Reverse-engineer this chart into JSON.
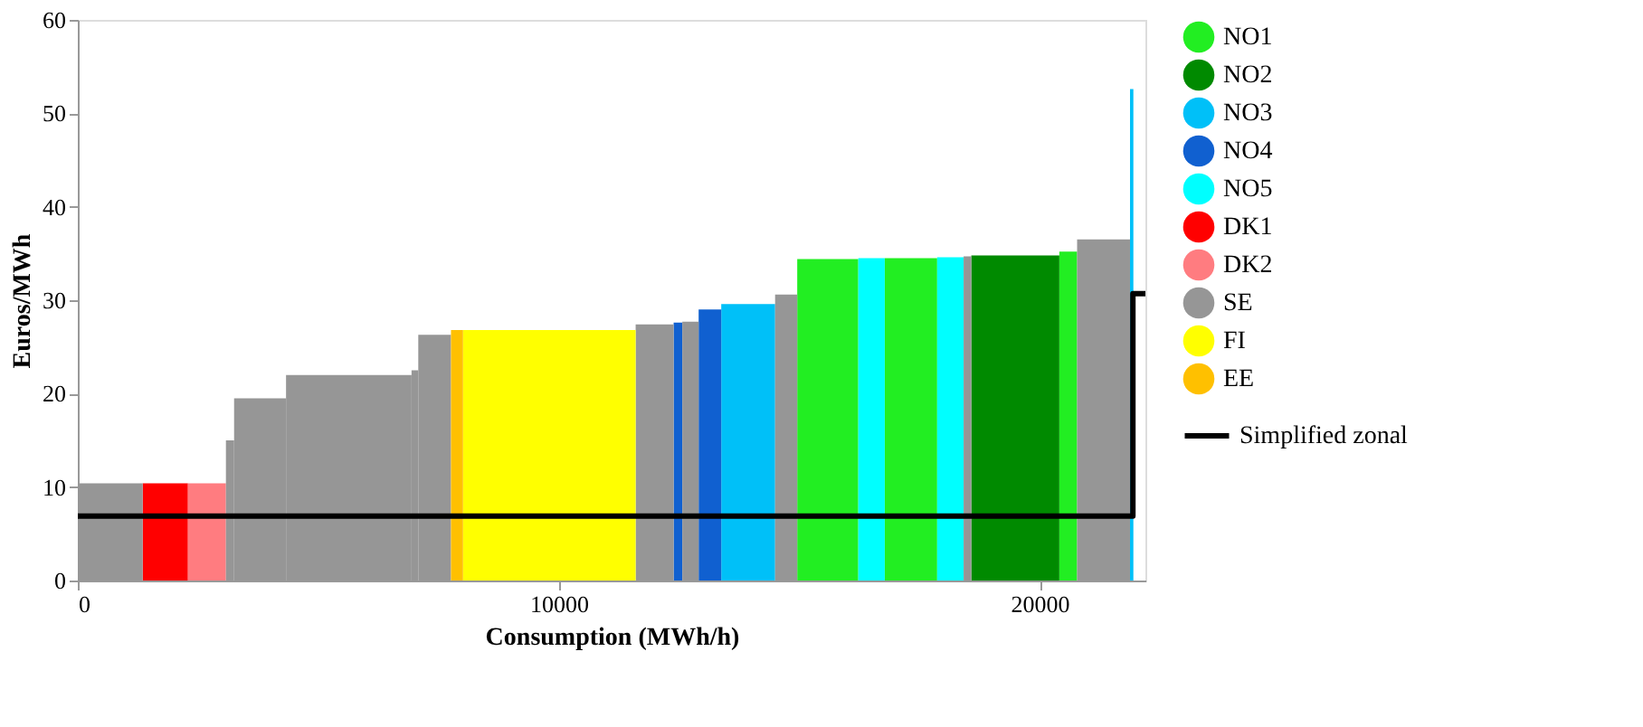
{
  "chart_data": {
    "type": "area",
    "xlabel": "Consumption (MWh/h)",
    "ylabel": "Euros/MWh",
    "xlim": [
      0,
      22200
    ],
    "xticks": [
      0,
      10000,
      20000
    ],
    "ylim": [
      0,
      60
    ],
    "yticks": [
      0,
      10,
      20,
      30,
      40,
      50,
      60
    ],
    "grid": false,
    "legend": "right",
    "series": [
      {
        "name": "NO1",
        "color": "#22ee22",
        "x": [
          14960,
          16230,
          null,
          16780,
          17870,
          null,
          20410,
          20780
        ],
        "values": [
          34.4,
          34.4,
          null,
          34.5,
          34.5,
          null,
          35.2,
          35.2
        ]
      },
      {
        "name": "NO2",
        "color": "#008a00",
        "x": [
          18580,
          20410
        ],
        "values": [
          34.8,
          34.8
        ]
      },
      {
        "name": "NO3",
        "color": "#00c0f8",
        "x": [
          13380,
          14500,
          null,
          21880,
          21950
        ],
        "values": [
          29.6,
          29.6,
          null,
          52.6,
          52.6
        ]
      },
      {
        "name": "NO4",
        "color": "#1060d0",
        "x": [
          12390,
          12570,
          null,
          12910,
          13380
        ],
        "values": [
          27.6,
          27.6,
          null,
          29.0,
          29.0
        ]
      },
      {
        "name": "NO5",
        "color": "#00ffff",
        "x": [
          16230,
          16780,
          null,
          17870,
          18420
        ],
        "values": [
          34.5,
          34.5,
          null,
          34.6,
          34.6
        ]
      },
      {
        "name": "DK1",
        "color": "#ff0000",
        "x": [
          1350,
          2290
        ],
        "values": [
          10.4,
          10.4
        ]
      },
      {
        "name": "DK2",
        "color": "#ff7c80",
        "x": [
          2290,
          3080
        ],
        "values": [
          10.4,
          10.4
        ]
      },
      {
        "name": "SE",
        "color": "#969696",
        "x": [
          0,
          1350,
          null,
          3080,
          3250,
          null,
          3250,
          4330,
          null,
          4330,
          6940,
          null,
          6940,
          7080,
          null,
          7080,
          7760,
          null,
          11600,
          12390,
          null,
          12570,
          12910,
          null,
          14500,
          14960,
          null,
          18420,
          18580,
          null,
          20780,
          21880
        ],
        "values": [
          10.4,
          10.4,
          null,
          15.0,
          15.0,
          null,
          19.5,
          19.5,
          null,
          22.0,
          22.0,
          null,
          22.5,
          22.5,
          null,
          26.3,
          26.3,
          null,
          27.4,
          27.4,
          null,
          27.7,
          27.7,
          null,
          30.6,
          30.6,
          null,
          34.7,
          34.7,
          null,
          36.5,
          36.5
        ]
      },
      {
        "name": "FI",
        "color": "#ffff00",
        "x": [
          8010,
          11600
        ],
        "values": [
          26.8,
          26.8
        ]
      },
      {
        "name": "EE",
        "color": "#ffc000",
        "x": [
          7760,
          8010
        ],
        "values": [
          26.8,
          26.8
        ]
      },
      {
        "name": "Simplified zonal",
        "type": "line",
        "color": "#000000",
        "x": [
          0,
          21940,
          21940,
          22200
        ],
        "values": [
          6.9,
          6.9,
          30.7,
          30.7
        ]
      }
    ]
  }
}
